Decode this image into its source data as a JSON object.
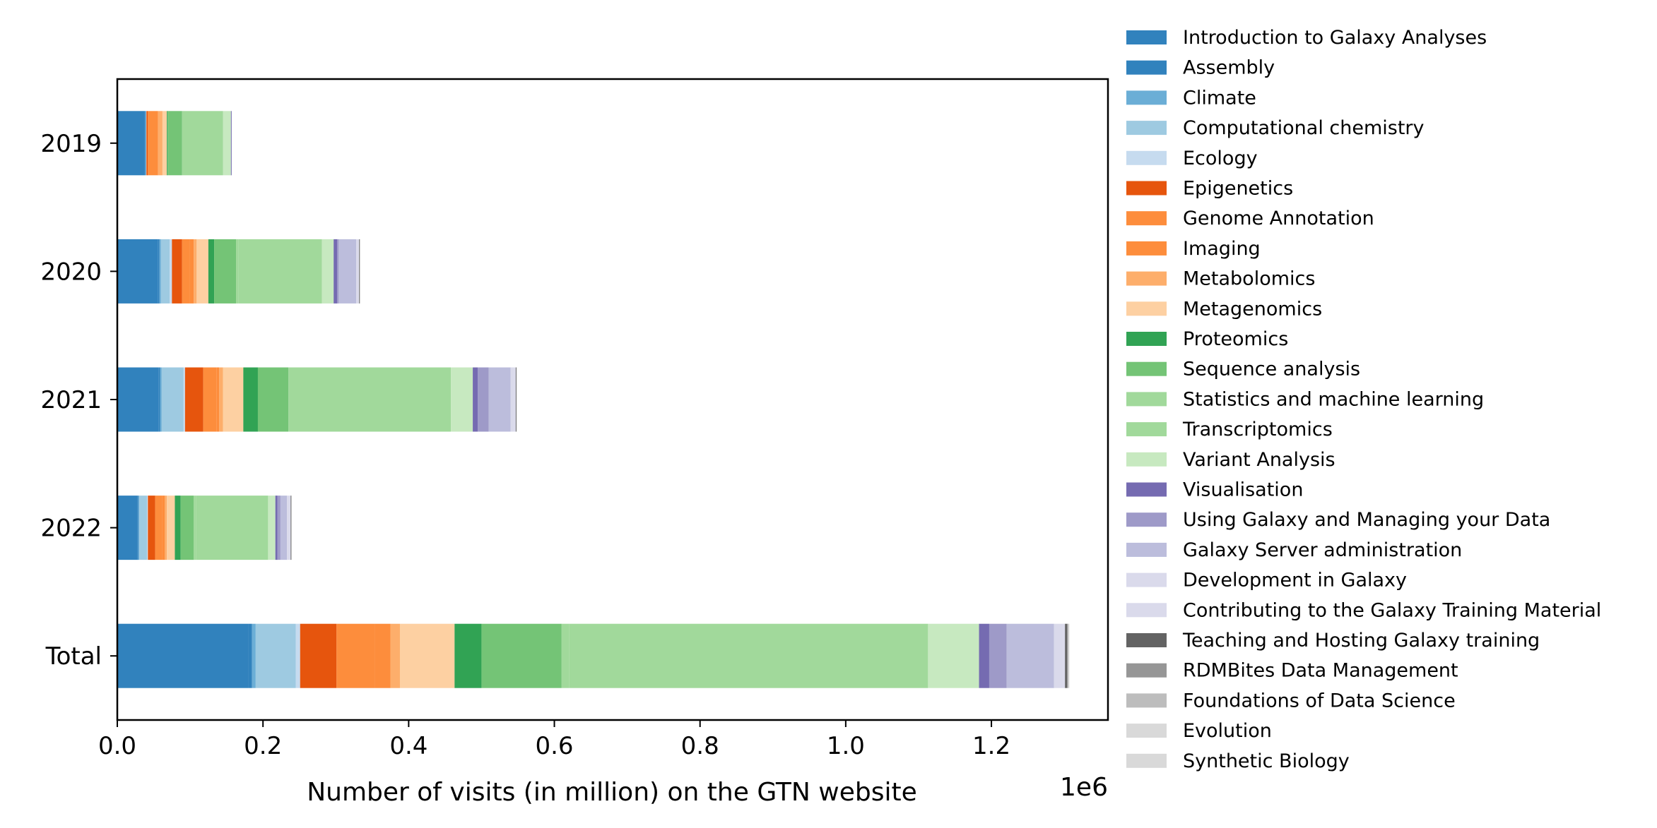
{
  "chart_data": {
    "type": "bar",
    "orientation": "horizontal",
    "stacked": true,
    "categories": [
      "2019",
      "2020",
      "2021",
      "2022",
      "Total"
    ],
    "xlabel": "Number of visits (in million) on the GTN website",
    "ylabel": "",
    "x_offset_text": "1e6",
    "xlim": [
      0,
      1360000
    ],
    "xticks": [
      0,
      200000,
      400000,
      600000,
      800000,
      1000000,
      1200000
    ],
    "xtick_labels": [
      "0.0",
      "0.2",
      "0.4",
      "0.6",
      "0.8",
      "1.0",
      "1.2"
    ],
    "grid": false,
    "legend_position": "outside right",
    "series": [
      {
        "name": "Introduction to Galaxy Analyses",
        "color": "#3182bd",
        "values": [
          37000,
          56000,
          57000,
          28000,
          180000
        ]
      },
      {
        "name": "Assembly",
        "color": "#3182bd",
        "values": [
          2000,
          2000,
          2000,
          1000,
          5000
        ]
      },
      {
        "name": "Climate",
        "color": "#6baed6",
        "values": [
          0,
          2000,
          2000,
          1000,
          5000
        ]
      },
      {
        "name": "Computational chemistry",
        "color": "#9ecae1",
        "values": [
          1000,
          12000,
          30000,
          11000,
          55000
        ]
      },
      {
        "name": "Ecology",
        "color": "#c6dbef",
        "values": [
          0,
          3000,
          2000,
          1000,
          6000
        ]
      },
      {
        "name": "Epigenetics",
        "color": "#e6550d",
        "values": [
          2000,
          14000,
          25000,
          10000,
          50000
        ]
      },
      {
        "name": "Genome Annotation",
        "color": "#fd8d3c",
        "values": [
          14000,
          10000,
          18000,
          10000,
          53000
        ]
      },
      {
        "name": "Imaging",
        "color": "#fd8d3c",
        "values": [
          0,
          6000,
          4000,
          3000,
          21000
        ]
      },
      {
        "name": "Metabolomics",
        "color": "#fdae6b",
        "values": [
          6000,
          4000,
          5000,
          3000,
          13000
        ]
      },
      {
        "name": "Metagenomics",
        "color": "#fdd0a2",
        "values": [
          6000,
          16000,
          28000,
          11000,
          75000
        ]
      },
      {
        "name": "Proteomics",
        "color": "#31a354",
        "values": [
          1000,
          8000,
          20000,
          8000,
          37000
        ]
      },
      {
        "name": "Sequence analysis",
        "color": "#74c476",
        "values": [
          20000,
          30000,
          42000,
          18000,
          110000
        ]
      },
      {
        "name": "Statistics and machine learning",
        "color": "#a1d99b",
        "values": [
          0,
          3000,
          8000,
          3000,
          10000
        ]
      },
      {
        "name": "Transcriptomics",
        "color": "#a1d99b",
        "values": [
          56000,
          115000,
          215000,
          99000,
          493000
        ]
      },
      {
        "name": "Variant Analysis",
        "color": "#c7e9c0",
        "values": [
          11000,
          16000,
          30000,
          10000,
          70000
        ]
      },
      {
        "name": "Visualisation",
        "color": "#756bb1",
        "values": [
          1000,
          5000,
          7000,
          3000,
          14000
        ]
      },
      {
        "name": "Using Galaxy and Managing your Data",
        "color": "#9e9ac8",
        "values": [
          0,
          2000,
          15000,
          4000,
          24000
        ]
      },
      {
        "name": "Galaxy Server administration",
        "color": "#bcbddc",
        "values": [
          0,
          24000,
          30000,
          9000,
          65000
        ]
      },
      {
        "name": "Development in Galaxy",
        "color": "#dadaeb",
        "values": [
          0,
          3000,
          5000,
          4000,
          12000
        ]
      },
      {
        "name": "Contributing to the Galaxy Training Material",
        "color": "#dadaeb",
        "values": [
          0,
          1000,
          2000,
          1000,
          3000
        ]
      },
      {
        "name": "Teaching and Hosting Galaxy training",
        "color": "#636363",
        "values": [
          0,
          1000,
          1000,
          1000,
          3000
        ]
      },
      {
        "name": "RDMBites Data Management",
        "color": "#969696",
        "values": [
          0,
          0,
          0,
          0,
          1000
        ]
      },
      {
        "name": "Foundations of Data Science",
        "color": "#bdbdbd",
        "values": [
          0,
          0,
          0,
          0,
          1000
        ]
      },
      {
        "name": "Evolution",
        "color": "#d9d9d9",
        "values": [
          0,
          0,
          0,
          0,
          500
        ]
      },
      {
        "name": "Synthetic Biology",
        "color": "#d9d9d9",
        "values": [
          0,
          0,
          0,
          0,
          500
        ]
      }
    ]
  }
}
